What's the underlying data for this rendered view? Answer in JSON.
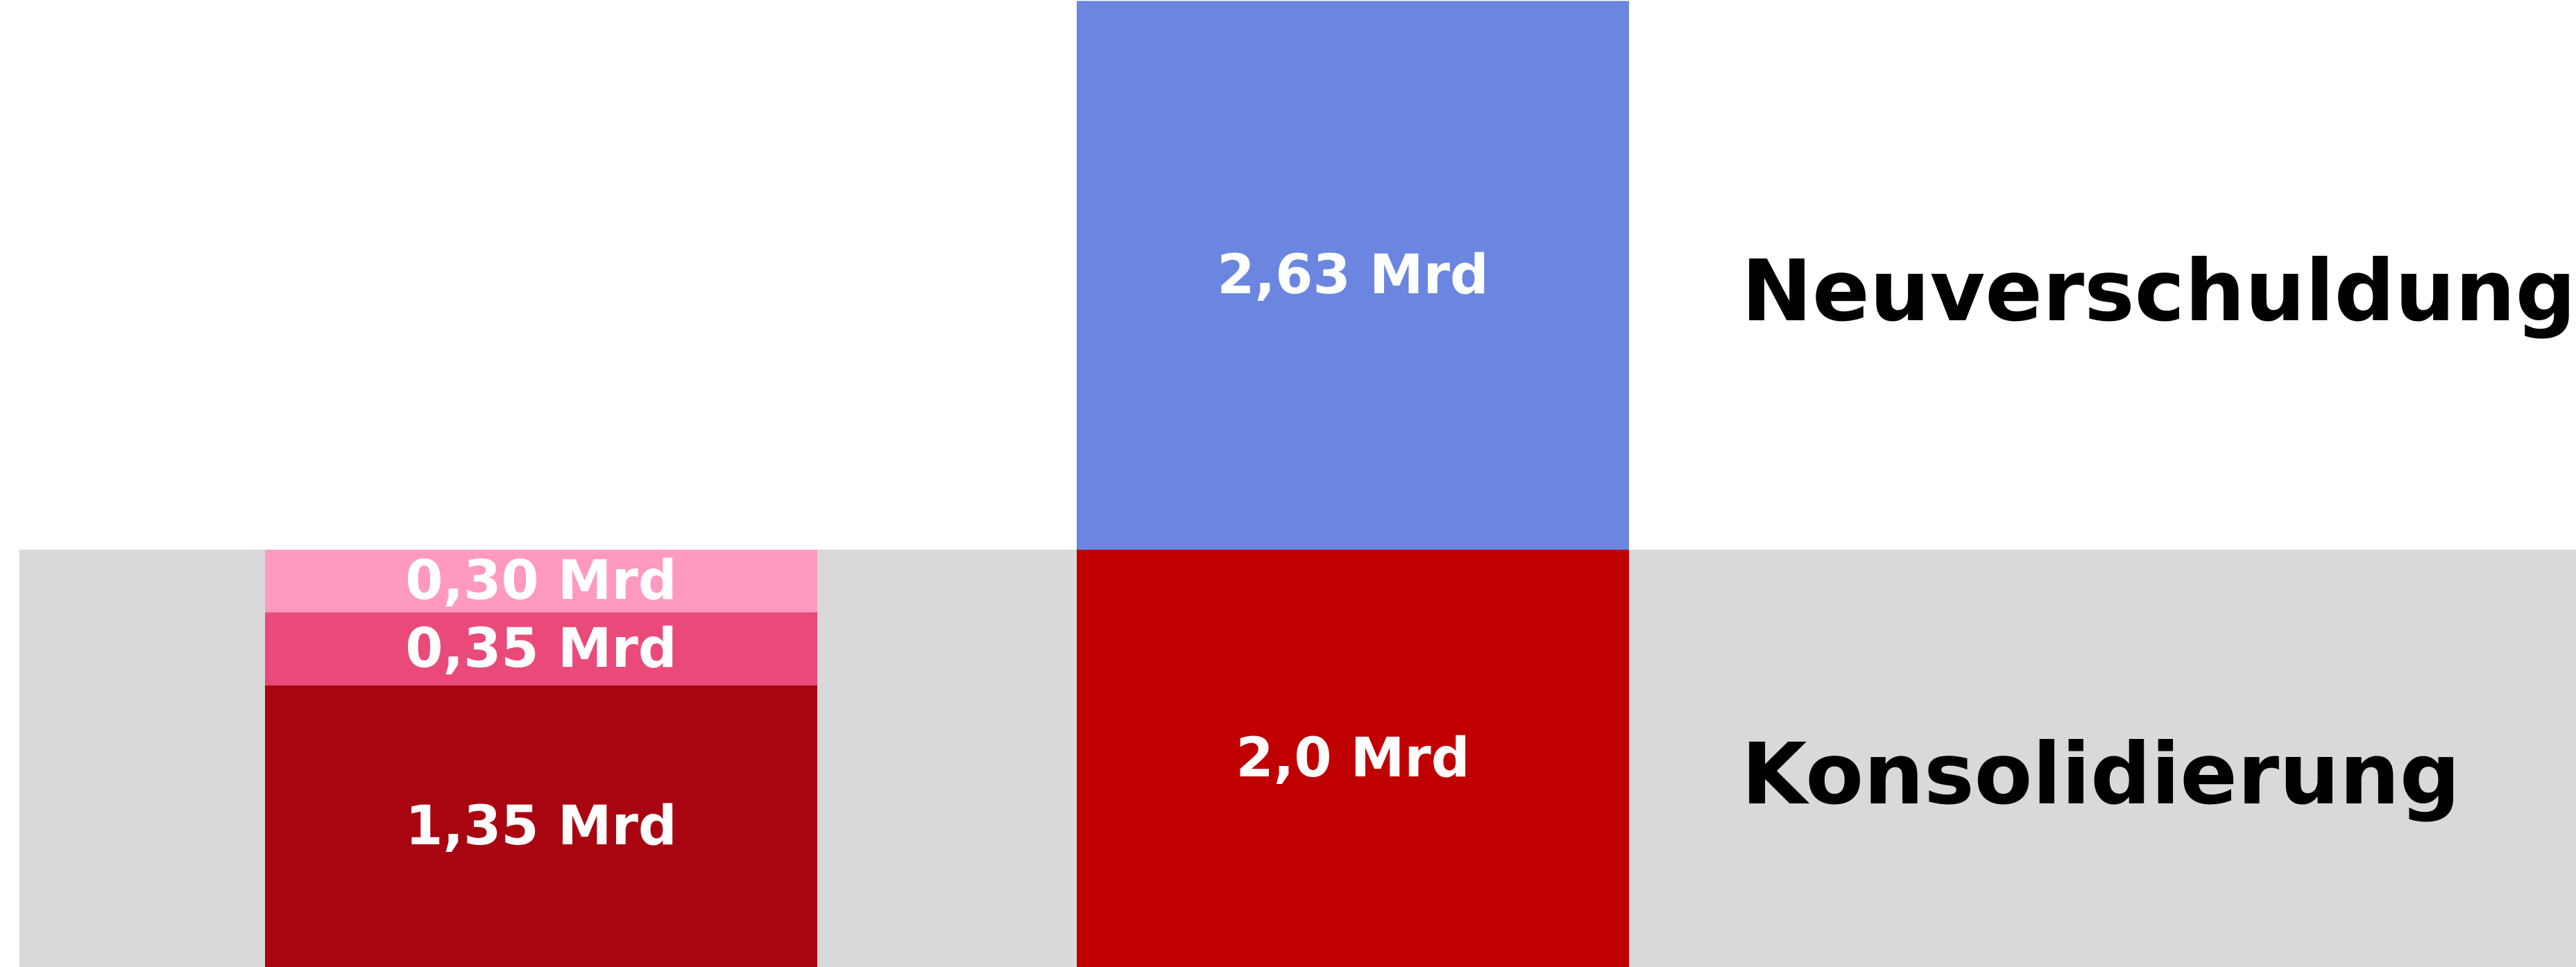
{
  "chart_data": {
    "type": "bar",
    "stacked": true,
    "unit": "Mrd",
    "axis_label_shown": false,
    "categories": [
      "",
      ""
    ],
    "bands": [
      {
        "label": "Konsolidierung",
        "color": "#d9d9d9"
      },
      {
        "label": "Neuverschuldung",
        "color": "#ffffff"
      }
    ],
    "bars": [
      {
        "segments": [
          {
            "value": 1.35,
            "label": "1,35 Mrd",
            "color": "#a80510"
          },
          {
            "value": 0.35,
            "label": "0,35 Mrd",
            "color": "#ea4a7a"
          },
          {
            "value": 0.3,
            "label": "0,30 Mrd",
            "color": "#ff99bf"
          }
        ]
      },
      {
        "segments": [
          {
            "value": 2.0,
            "label": "2,0 Mrd",
            "color": "#c00000"
          },
          {
            "value": 2.63,
            "label": "2,63 Mrd",
            "color": "#6a86e0"
          }
        ]
      }
    ]
  }
}
